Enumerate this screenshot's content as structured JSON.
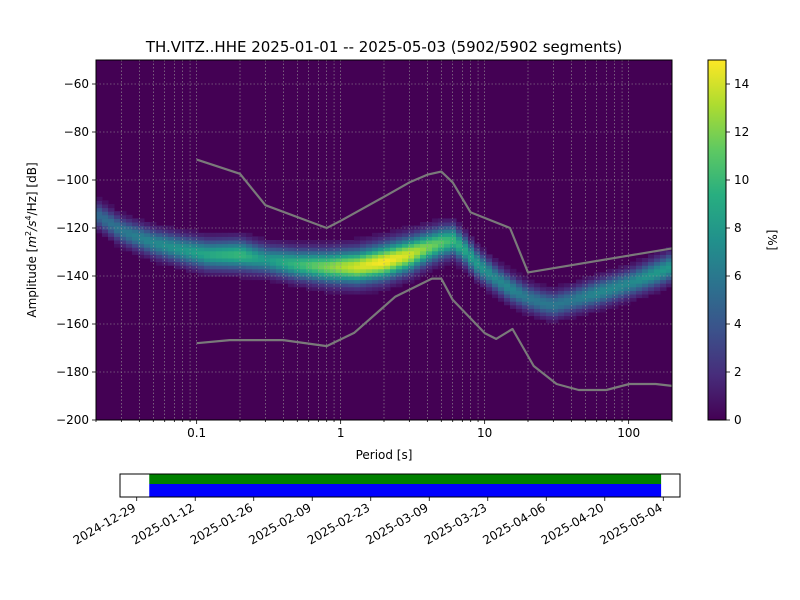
{
  "chart_data": {
    "type": "heatmap",
    "title": "TH.VITZ..HHE   2025-01-01 -- 2025-05-03  (5902/5902 segments)",
    "xlabel": "Period [s]",
    "ylabel": "Amplitude [$m^2/s^4/Hz$] [dB]",
    "ylabel_parts": {
      "lead": "Amplitude [",
      "m": "m",
      "two": "2",
      "s": "/s",
      "four": "4",
      "hz": "/Hz] [dB]"
    },
    "x_scale": "log",
    "xlim": [
      0.02,
      200
    ],
    "ylim": [
      -200,
      -50
    ],
    "x_ticks": [
      {
        "value": 0.1,
        "label": "0.1"
      },
      {
        "value": 1,
        "label": "1"
      },
      {
        "value": 10,
        "label": "10"
      },
      {
        "value": 100,
        "label": "100"
      }
    ],
    "y_ticks": [
      {
        "value": -60,
        "label": "−60"
      },
      {
        "value": -80,
        "label": "−80"
      },
      {
        "value": -100,
        "label": "−100"
      },
      {
        "value": -120,
        "label": "−120"
      },
      {
        "value": -140,
        "label": "−140"
      },
      {
        "value": -160,
        "label": "−160"
      },
      {
        "value": -180,
        "label": "−180"
      },
      {
        "value": -200,
        "label": "−200"
      }
    ],
    "grid": true,
    "colormap": "viridis",
    "colorbar": {
      "label": "[%]",
      "range": [
        0,
        15
      ],
      "ticks": [
        {
          "value": 0,
          "label": "0"
        },
        {
          "value": 2,
          "label": "2"
        },
        {
          "value": 4,
          "label": "4"
        },
        {
          "value": 6,
          "label": "6"
        },
        {
          "value": 8,
          "label": "8"
        },
        {
          "value": 10,
          "label": "10"
        },
        {
          "value": 12,
          "label": "12"
        },
        {
          "value": 14,
          "label": "14"
        }
      ]
    },
    "ridge": {
      "periods": [
        0.02,
        0.03,
        0.05,
        0.08,
        0.12,
        0.2,
        0.3,
        0.5,
        0.8,
        1.0,
        1.3,
        2.0,
        3.0,
        4.0,
        5.0,
        6.0,
        7.0,
        9.0,
        12.0,
        15.0,
        20.0,
        25.0,
        30.0,
        40.0,
        60.0,
        100.0,
        150.0,
        200.0
      ],
      "amplitude_db": [
        -114,
        -121,
        -126,
        -129,
        -131,
        -131,
        -133,
        -135,
        -136,
        -136,
        -136,
        -134,
        -131,
        -128,
        -126,
        -125,
        -128,
        -135,
        -141,
        -145,
        -149,
        -151,
        -152,
        -150,
        -147,
        -143,
        -139,
        -136
      ],
      "peak_percent": [
        5,
        6,
        7,
        8,
        9,
        10,
        8,
        10,
        12,
        13,
        14,
        15,
        14,
        12,
        11,
        10,
        9,
        8,
        7,
        7,
        6,
        6,
        6,
        6,
        7,
        7,
        8,
        8
      ]
    },
    "reference_curves": [
      {
        "periods": [
          0.1,
          0.2,
          0.3,
          0.8,
          1.0,
          2.0,
          3.0,
          4.0,
          5.0,
          6.0,
          8.0,
          15.0,
          20.0,
          200.0
        ],
        "amplitude_db": [
          -91.5,
          -97.4,
          -110.5,
          -120,
          -117,
          -107,
          -101,
          -97.8,
          -96.5,
          -101,
          -113.5,
          -120,
          -138.5,
          -128.5
        ]
      },
      {
        "periods": [
          0.1,
          0.17,
          0.4,
          0.8,
          1.24,
          2.4,
          4.3,
          5.0,
          6.0,
          10.0,
          12.0,
          15.6,
          21.9,
          31.6,
          45.0,
          70.0,
          101.0,
          154.0,
          200.0
        ],
        "amplitude_db": [
          -168.0,
          -166.7,
          -166.7,
          -169.2,
          -163.7,
          -148.6,
          -141.1,
          -141.1,
          -149.9,
          -163.8,
          -166.2,
          -162.1,
          -177.5,
          -185.0,
          -187.5,
          -187.5,
          -185.0,
          -185.0,
          -185.8
        ]
      }
    ],
    "segment_timeline": {
      "tick_labels": [
        "2024-12-29",
        "2025-01-12",
        "2025-01-26",
        "2025-02-09",
        "2025-02-23",
        "2025-03-09",
        "2025-03-23",
        "2025-04-06",
        "2025-04-20",
        "2025-05-04"
      ],
      "data_start": "2025-01-01",
      "data_end": "2025-05-03",
      "colors": {
        "used": "#008000",
        "available": "#0000ff"
      }
    }
  }
}
